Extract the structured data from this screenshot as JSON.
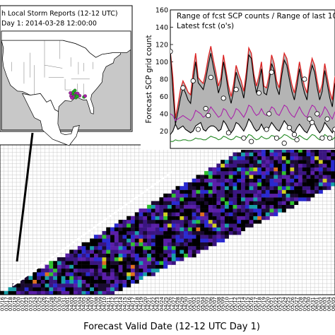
{
  "main_chart": {
    "xlabel": "Forecast Valid Date (12-12 UTC Day 1)",
    "x_ticks": [
      "03/16",
      "03/17",
      "03/18",
      "03/19",
      "03/20",
      "03/21",
      "03/22",
      "03/23",
      "03/24",
      "03/25",
      "03/26",
      "03/27",
      "03/28",
      "03/29",
      "03/30",
      "03/31",
      "04/01",
      "04/02",
      "04/03",
      "04/04",
      "04/05",
      "04/06",
      "04/07",
      "04/08",
      "04/09",
      "04/10",
      "04/11",
      "04/12",
      "04/13",
      "04/14",
      "04/15",
      "04/16",
      "04/17",
      "04/18",
      "04/19",
      "04/20",
      "04/21",
      "04/22",
      "04/23",
      "04/24",
      "04/25",
      "04/26",
      "04/27",
      "04/28",
      "04/29",
      "04/30",
      "05/01",
      "05/02",
      "05/03",
      "05/04",
      "05/05",
      "05/06",
      "05/07",
      "05/08",
      "05/09",
      "05/10",
      "05/11",
      "05/12",
      "05/13",
      "05/14",
      "05/15",
      "05/16",
      "05/17",
      "05/18",
      "05/19",
      "05/20",
      "05/21",
      "05/22",
      "05/23",
      "05/24",
      "05/25",
      "05/26",
      "05/27",
      "05/28",
      "05/29",
      "05/30",
      "05/31",
      "06/01",
      "06/02",
      "06/03",
      "06/04",
      "06/05"
    ]
  },
  "chart_data": [
    {
      "type": "line",
      "ylabel": "Forecast SCP grid count",
      "legend": [
        "Range of fcst SCP counts / Range of last 10",
        "Latest fcst (o's)"
      ],
      "legend_placement": "top",
      "ylim": [
        0,
        160
      ],
      "y_ticks": [
        20,
        40,
        60,
        80,
        100,
        120,
        140,
        160
      ],
      "x_index": [
        0,
        1,
        2,
        3,
        4,
        5,
        6,
        7,
        8,
        9,
        10,
        11,
        12,
        13,
        14,
        15,
        16,
        17,
        18,
        19,
        20,
        21,
        22,
        23,
        24,
        25,
        26,
        27,
        28,
        29,
        30,
        31,
        32,
        33,
        34,
        35,
        36,
        37,
        38,
        39,
        40,
        41,
        42,
        43,
        44,
        45,
        46,
        47,
        48,
        49,
        50,
        51,
        52,
        53,
        54,
        55,
        56,
        57,
        58,
        59,
        60,
        61,
        62,
        63,
        64,
        65,
        66,
        67
      ],
      "series": [
        {
          "name": "range_max",
          "color": "#dd2222",
          "values": [
            112,
            82,
            35,
            50,
            68,
            78,
            72,
            65,
            62,
            88,
            110,
            82,
            78,
            75,
            88,
            105,
            118,
            102,
            88,
            72,
            82,
            108,
            90,
            72,
            60,
            74,
            96,
            86,
            78,
            66,
            88,
            116,
            110,
            86,
            72,
            84,
            100,
            72,
            70,
            84,
            108,
            98,
            78,
            70,
            92,
            110,
            104,
            88,
            74,
            64,
            80,
            100,
            84,
            72,
            64,
            90,
            104,
            96,
            78,
            64,
            74,
            98,
            82,
            66,
            56,
            82,
            92,
            78
          ]
        },
        {
          "name": "range_min_last10",
          "color": "#000000",
          "values": [
            16,
            20,
            28,
            22,
            24,
            26,
            22,
            20,
            18,
            20,
            26,
            28,
            30,
            22,
            20,
            24,
            26,
            26,
            24,
            20,
            22,
            32,
            28,
            22,
            18,
            22,
            30,
            28,
            24,
            20,
            26,
            34,
            30,
            24,
            20,
            22,
            28,
            22,
            20,
            24,
            30,
            26,
            22,
            20,
            26,
            32,
            28,
            24,
            20,
            18,
            24,
            28,
            24,
            20,
            18,
            24,
            30,
            28,
            22,
            18,
            22,
            30,
            26,
            22,
            18,
            24,
            28,
            24
          ]
        },
        {
          "name": "latest_fcst_max",
          "color": "#000000",
          "values": [
            112,
            66,
            28,
            42,
            58,
            70,
            64,
            56,
            52,
            78,
            100,
            76,
            72,
            68,
            80,
            96,
            110,
            94,
            80,
            64,
            74,
            100,
            84,
            64,
            52,
            66,
            88,
            78,
            70,
            58,
            80,
            108,
            104,
            80,
            64,
            76,
            92,
            64,
            62,
            76,
            98,
            90,
            70,
            62,
            84,
            102,
            96,
            80,
            66,
            56,
            72,
            92,
            76,
            64,
            56,
            82,
            96,
            88,
            70,
            56,
            66,
            90,
            74,
            58,
            48,
            74,
            84,
            70
          ]
        },
        {
          "name": "latest_fcst_mid",
          "color": "#aa22aa",
          "values": [
            40,
            38,
            32,
            34,
            36,
            38,
            36,
            34,
            32,
            36,
            44,
            42,
            40,
            36,
            38,
            42,
            48,
            44,
            40,
            36,
            38,
            46,
            44,
            38,
            34,
            38,
            46,
            44,
            40,
            36,
            42,
            50,
            48,
            42,
            38,
            40,
            46,
            40,
            38,
            42,
            48,
            46,
            40,
            38,
            44,
            50,
            48,
            42,
            38,
            36,
            42,
            48,
            42,
            38,
            36,
            44,
            50,
            48,
            42,
            36,
            40,
            48,
            44,
            38,
            34,
            42,
            46,
            42
          ]
        },
        {
          "name": "latest_fcst_low",
          "color": "#228822",
          "values": [
            8,
            8,
            10,
            9,
            9,
            10,
            10,
            9,
            9,
            10,
            12,
            11,
            11,
            10,
            10,
            12,
            14,
            13,
            12,
            10,
            11,
            14,
            13,
            11,
            10,
            11,
            14,
            13,
            12,
            10,
            12,
            16,
            15,
            12,
            10,
            11,
            14,
            12,
            11,
            12,
            15,
            14,
            12,
            11,
            13,
            16,
            15,
            13,
            11,
            10,
            12,
            15,
            13,
            11,
            10,
            13,
            16,
            15,
            12,
            10,
            12,
            16,
            14,
            12,
            10,
            13,
            15,
            13
          ]
        }
      ],
      "points": [
        {
          "x": 0,
          "y": 112
        },
        {
          "x": 5,
          "y": 70
        },
        {
          "x": 9,
          "y": 78
        },
        {
          "x": 11,
          "y": 22
        },
        {
          "x": 14,
          "y": 46
        },
        {
          "x": 15,
          "y": 38
        },
        {
          "x": 16,
          "y": 82
        },
        {
          "x": 21,
          "y": 58
        },
        {
          "x": 23,
          "y": 18
        },
        {
          "x": 26,
          "y": 68
        },
        {
          "x": 29,
          "y": 12
        },
        {
          "x": 32,
          "y": 8
        },
        {
          "x": 35,
          "y": 64
        },
        {
          "x": 38,
          "y": 22
        },
        {
          "x": 39,
          "y": 40
        },
        {
          "x": 40,
          "y": 88
        },
        {
          "x": 42,
          "y": 12
        },
        {
          "x": 45,
          "y": 6
        },
        {
          "x": 47,
          "y": 24
        },
        {
          "x": 49,
          "y": 16
        },
        {
          "x": 50,
          "y": 10
        },
        {
          "x": 53,
          "y": 80
        },
        {
          "x": 55,
          "y": 34
        },
        {
          "x": 56,
          "y": 30
        },
        {
          "x": 58,
          "y": 40
        },
        {
          "x": 60,
          "y": 12
        },
        {
          "x": 62,
          "y": 34
        },
        {
          "x": 63,
          "y": 12
        },
        {
          "x": 65,
          "y": 22
        },
        {
          "x": 66,
          "y": 18
        },
        {
          "x": 67,
          "y": 30
        }
      ]
    },
    {
      "type": "map",
      "title": "h Local Storm Reports (12-12 UTC)",
      "subtitle": "Day 1: 2014-03-28 12:00:00",
      "reports": [
        {
          "lon": -89.5,
          "lat": 31.2
        },
        {
          "lon": -88.9,
          "lat": 31.9
        },
        {
          "lon": -90.4,
          "lat": 31.6
        },
        {
          "lon": -89.8,
          "lat": 30.7
        },
        {
          "lon": -88.3,
          "lat": 31.4
        },
        {
          "lon": -91.1,
          "lat": 31.0
        },
        {
          "lon": -90.0,
          "lat": 32.3
        },
        {
          "lon": -87.8,
          "lat": 31.8
        },
        {
          "lon": -88.7,
          "lat": 30.5
        },
        {
          "lon": -91.4,
          "lat": 32.0
        },
        {
          "lon": -89.2,
          "lat": 32.8
        },
        {
          "lon": -86.9,
          "lat": 31.1
        },
        {
          "lon": -88.1,
          "lat": 30.9
        },
        {
          "lon": -90.7,
          "lat": 30.4
        },
        {
          "lon": -84.8,
          "lat": 30.7
        },
        {
          "lon": -84.2,
          "lat": 31.0
        }
      ]
    },
    {
      "type": "heatmap",
      "description_key": "ensemble_by_valid_date",
      "n_cols": 82,
      "n_rows": 40,
      "palette": [
        "#000000",
        "#1a0a30",
        "#3a1580",
        "#5a1fa8",
        "#2a2ad0",
        "#18a0a8",
        "#30c030",
        "#d0d020",
        "#e07020"
      ]
    }
  ]
}
